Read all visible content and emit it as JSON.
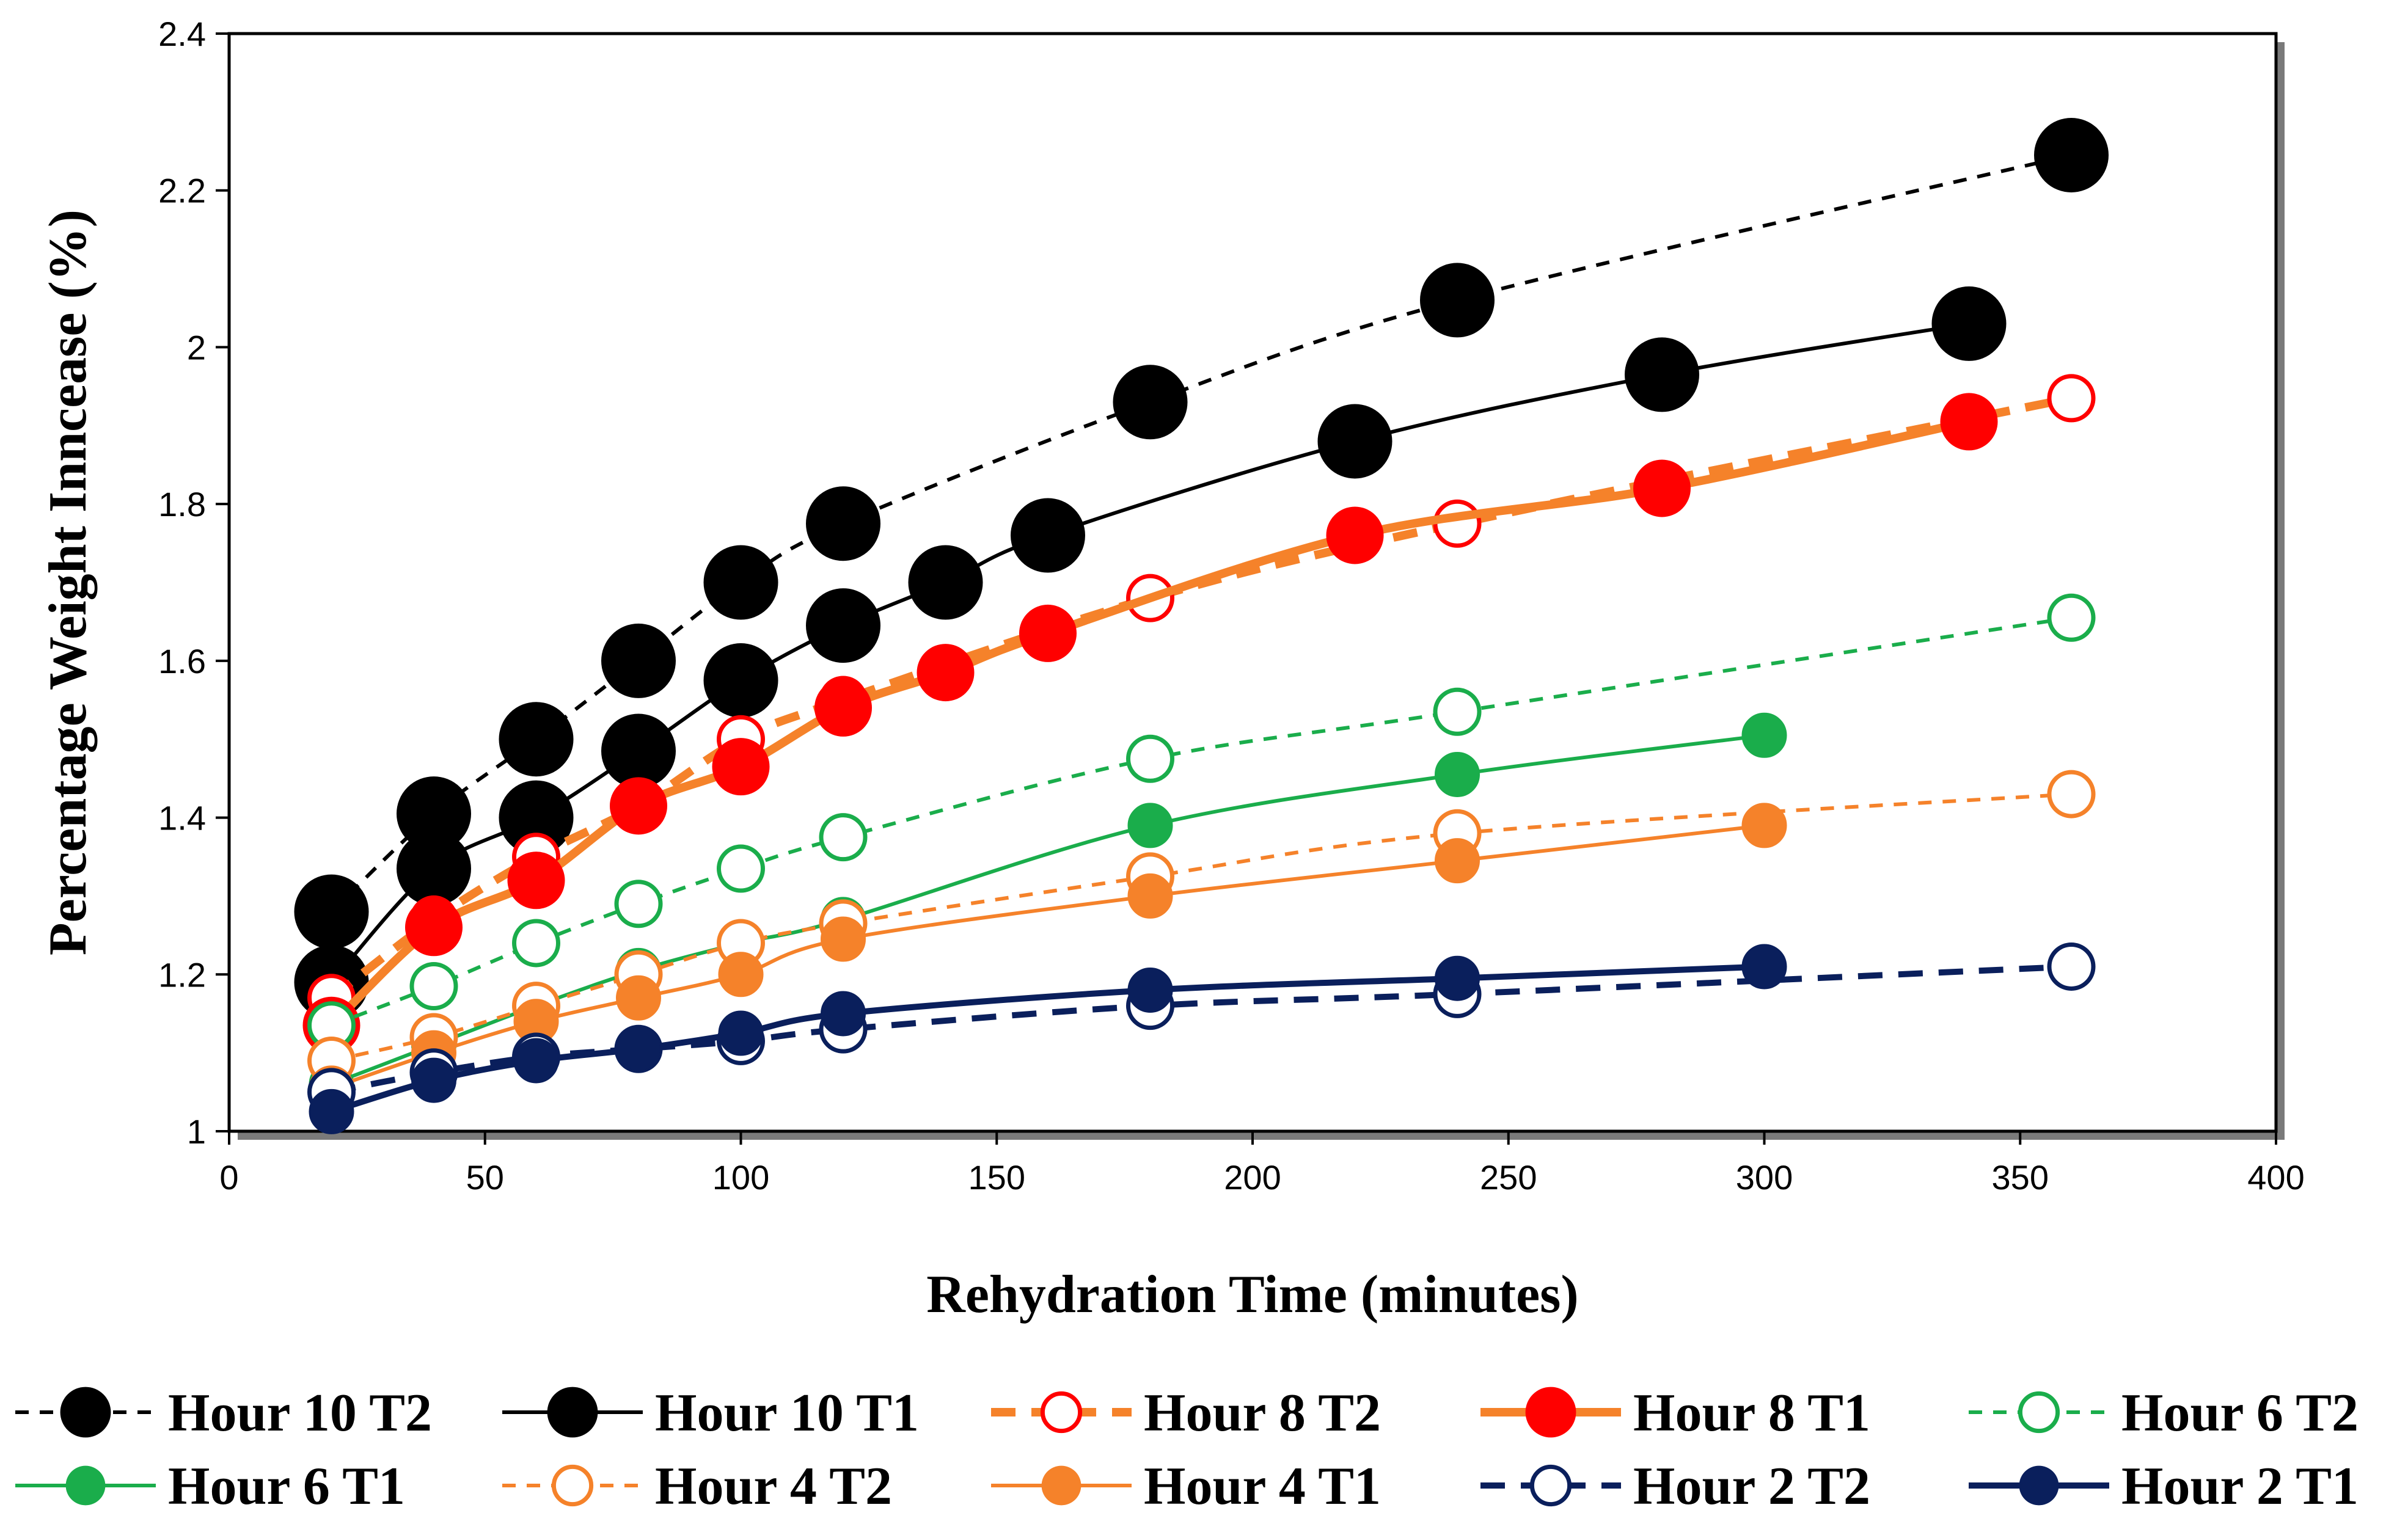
{
  "chart_data": {
    "type": "line",
    "title": "",
    "xlabel": "Rehydration Time (minutes)",
    "ylabel": "Percentage Weight Inncease (%)",
    "xlim": [
      0,
      400
    ],
    "ylim": [
      1,
      2.4
    ],
    "xticks": [
      "0",
      "50",
      "100",
      "150",
      "200",
      "250",
      "300",
      "350",
      "400"
    ],
    "yticks": [
      "1",
      "1.2",
      "1.4",
      "1.6",
      "1.8",
      "2",
      "2.2",
      "2.4"
    ],
    "grid": false,
    "legend_position": "bottom",
    "series": [
      {
        "name": "Hour 10 T2",
        "color": "#000000",
        "dash": "dashed",
        "marker": "filled",
        "marker_size": "xlarge",
        "line": "thin",
        "x": [
          20,
          40,
          60,
          80,
          100,
          120,
          180,
          240,
          360
        ],
        "y": [
          1.28,
          1.405,
          1.5,
          1.6,
          1.7,
          1.775,
          1.93,
          2.06,
          2.245
        ]
      },
      {
        "name": "Hour 10 T1",
        "color": "#000000",
        "dash": "solid",
        "marker": "filled",
        "marker_size": "xlarge",
        "line": "thin",
        "x": [
          20,
          40,
          60,
          80,
          100,
          120,
          140,
          160,
          220,
          280,
          340
        ],
        "y": [
          1.19,
          1.335,
          1.4,
          1.485,
          1.575,
          1.645,
          1.7,
          1.76,
          1.88,
          1.965,
          2.03
        ]
      },
      {
        "name": "Hour 8 T2",
        "color": "#ff0000",
        "line_color": "#f5822a",
        "dash": "dashed",
        "marker": "open",
        "marker_size": "medium",
        "line": "thick",
        "x": [
          20,
          40,
          60,
          80,
          100,
          120,
          180,
          240,
          360
        ],
        "y": [
          1.17,
          1.27,
          1.35,
          1.415,
          1.5,
          1.55,
          1.68,
          1.775,
          1.935
        ]
      },
      {
        "name": "Hour 8 T1",
        "color": "#ff0000",
        "line_color": "#f5822a",
        "dash": "solid",
        "marker": "filled",
        "marker_size": "large",
        "line": "thick",
        "x": [
          20,
          40,
          60,
          80,
          100,
          120,
          140,
          160,
          220,
          280,
          340
        ],
        "y": [
          1.135,
          1.26,
          1.32,
          1.415,
          1.465,
          1.54,
          1.585,
          1.635,
          1.76,
          1.82,
          1.905
        ]
      },
      {
        "name": "Hour 6 T2",
        "color": "#1aad4b",
        "dash": "dashed",
        "marker": "open",
        "marker_size": "medium",
        "line": "thin",
        "x": [
          20,
          40,
          60,
          80,
          100,
          120,
          180,
          240,
          360
        ],
        "y": [
          1.135,
          1.185,
          1.24,
          1.29,
          1.335,
          1.375,
          1.475,
          1.535,
          1.655
        ]
      },
      {
        "name": "Hour 6 T1",
        "color": "#1aad4b",
        "dash": "solid",
        "marker": "filled",
        "marker_size": "medium",
        "line": "thin",
        "x": [
          20,
          40,
          60,
          80,
          100,
          120,
          180,
          240,
          300
        ],
        "y": [
          1.06,
          1.11,
          1.16,
          1.205,
          1.24,
          1.27,
          1.39,
          1.455,
          1.505
        ]
      },
      {
        "name": "Hour 4 T2",
        "color": "#f5822a",
        "dash": "dashed",
        "marker": "open",
        "marker_size": "medium",
        "line": "thin",
        "x": [
          20,
          40,
          60,
          80,
          100,
          120,
          180,
          240,
          360
        ],
        "y": [
          1.09,
          1.12,
          1.16,
          1.2,
          1.24,
          1.265,
          1.325,
          1.38,
          1.43
        ]
      },
      {
        "name": "Hour 4 T1",
        "color": "#f5822a",
        "dash": "solid",
        "marker": "filled",
        "marker_size": "medium",
        "line": "thin",
        "x": [
          20,
          40,
          60,
          80,
          100,
          120,
          180,
          240,
          300
        ],
        "y": [
          1.055,
          1.1,
          1.14,
          1.17,
          1.2,
          1.245,
          1.3,
          1.345,
          1.39
        ]
      },
      {
        "name": "Hour 2 T2",
        "color": "#0a1f5c",
        "dash": "dashed",
        "marker": "open",
        "marker_size": "medium",
        "line": "thick",
        "x": [
          20,
          40,
          60,
          80,
          100,
          120,
          180,
          240,
          360
        ],
        "y": [
          1.05,
          1.075,
          1.095,
          1.105,
          1.115,
          1.13,
          1.16,
          1.175,
          1.21
        ]
      },
      {
        "name": "Hour 2 T1",
        "color": "#0a1f5c",
        "dash": "solid",
        "marker": "filled",
        "marker_size": "medium",
        "line": "thick",
        "x": [
          20,
          40,
          60,
          80,
          100,
          120,
          180,
          240,
          300
        ],
        "y": [
          1.025,
          1.065,
          1.09,
          1.105,
          1.125,
          1.15,
          1.18,
          1.195,
          1.21
        ]
      }
    ]
  }
}
